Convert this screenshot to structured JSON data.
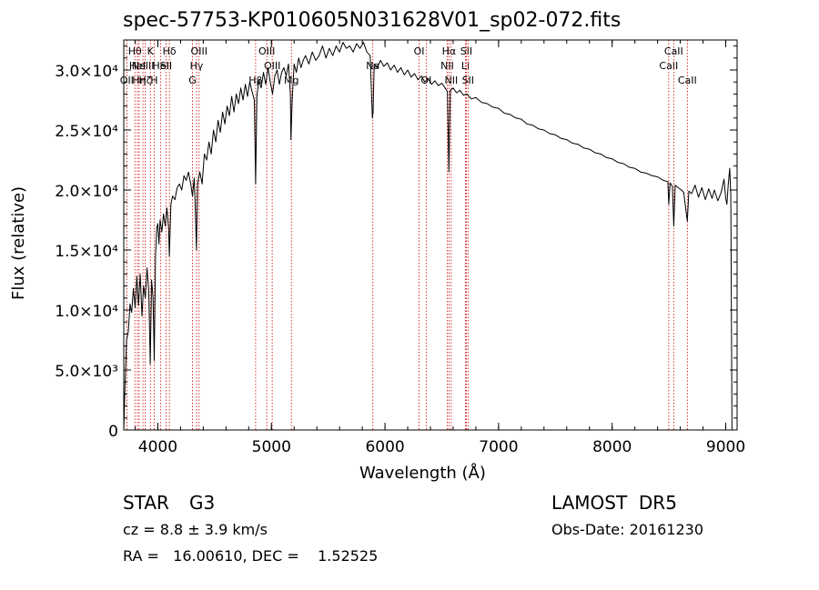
{
  "chart_data": {
    "type": "line",
    "title": "spec-57753-KP010605N031628V01_sp02-072.fits",
    "xlabel": "Wavelength (Å)",
    "ylabel": "Flux (relative)",
    "xlim": [
      3700,
      9100
    ],
    "ylim": [
      0,
      32500
    ],
    "x_ticks": [
      {
        "v": 4000,
        "label": "4000"
      },
      {
        "v": 5000,
        "label": "5000"
      },
      {
        "v": 6000,
        "label": "6000"
      },
      {
        "v": 7000,
        "label": "7000"
      },
      {
        "v": 8000,
        "label": "8000"
      },
      {
        "v": 9000,
        "label": "9000"
      }
    ],
    "y_ticks": [
      {
        "v": 0,
        "label": "0"
      },
      {
        "v": 5000,
        "label": "5.0×10³"
      },
      {
        "v": 10000,
        "label": "1.0×10⁴"
      },
      {
        "v": 15000,
        "label": "1.5×10⁴"
      },
      {
        "v": 20000,
        "label": "2.0×10⁴"
      },
      {
        "v": 25000,
        "label": "2.5×10⁴"
      },
      {
        "v": 30000,
        "label": "3.0×10⁴"
      }
    ],
    "grid": false,
    "line_color": "#000000",
    "marker_color": "#cc0000",
    "series": [
      {
        "points": [
          [
            3700,
            0
          ],
          [
            3712,
            4000
          ],
          [
            3725,
            7500
          ],
          [
            3740,
            8200
          ],
          [
            3755,
            10500
          ],
          [
            3770,
            9800
          ],
          [
            3785,
            11800
          ],
          [
            3800,
            10200
          ],
          [
            3815,
            12800
          ],
          [
            3830,
            10400
          ],
          [
            3845,
            13000
          ],
          [
            3860,
            9500
          ],
          [
            3875,
            12000
          ],
          [
            3890,
            11000
          ],
          [
            3905,
            13500
          ],
          [
            3920,
            11500
          ],
          [
            3933,
            5500
          ],
          [
            3945,
            12500
          ],
          [
            3958,
            11000
          ],
          [
            3968,
            5800
          ],
          [
            3980,
            14500
          ],
          [
            3990,
            16800
          ],
          [
            4000,
            17200
          ],
          [
            4010,
            15500
          ],
          [
            4020,
            17500
          ],
          [
            4035,
            16500
          ],
          [
            4050,
            18000
          ],
          [
            4065,
            17000
          ],
          [
            4080,
            18500
          ],
          [
            4095,
            16800
          ],
          [
            4101,
            14500
          ],
          [
            4115,
            18800
          ],
          [
            4130,
            19500
          ],
          [
            4150,
            19200
          ],
          [
            4170,
            20200
          ],
          [
            4190,
            20500
          ],
          [
            4210,
            20000
          ],
          [
            4230,
            21200
          ],
          [
            4250,
            20800
          ],
          [
            4270,
            21500
          ],
          [
            4290,
            20500
          ],
          [
            4305,
            19500
          ],
          [
            4320,
            21000
          ],
          [
            4330,
            18500
          ],
          [
            4340,
            15000
          ],
          [
            4350,
            20500
          ],
          [
            4370,
            21500
          ],
          [
            4390,
            20500
          ],
          [
            4410,
            23000
          ],
          [
            4430,
            22500
          ],
          [
            4450,
            24000
          ],
          [
            4470,
            23000
          ],
          [
            4490,
            25000
          ],
          [
            4510,
            24000
          ],
          [
            4530,
            25800
          ],
          [
            4550,
            24800
          ],
          [
            4570,
            26500
          ],
          [
            4590,
            25500
          ],
          [
            4610,
            27000
          ],
          [
            4630,
            26200
          ],
          [
            4650,
            27800
          ],
          [
            4670,
            26500
          ],
          [
            4690,
            28000
          ],
          [
            4710,
            27200
          ],
          [
            4730,
            28500
          ],
          [
            4750,
            27500
          ],
          [
            4770,
            28800
          ],
          [
            4790,
            27800
          ],
          [
            4810,
            29000
          ],
          [
            4830,
            28200
          ],
          [
            4850,
            27500
          ],
          [
            4861,
            20500
          ],
          [
            4872,
            27800
          ],
          [
            4890,
            29200
          ],
          [
            4910,
            28500
          ],
          [
            4930,
            29800
          ],
          [
            4950,
            28800
          ],
          [
            4970,
            30200
          ],
          [
            4990,
            29000
          ],
          [
            5010,
            28000
          ],
          [
            5030,
            29500
          ],
          [
            5050,
            30000
          ],
          [
            5070,
            28800
          ],
          [
            5090,
            29800
          ],
          [
            5110,
            30200
          ],
          [
            5130,
            29500
          ],
          [
            5150,
            30500
          ],
          [
            5167,
            28000
          ],
          [
            5172,
            24200
          ],
          [
            5183,
            27500
          ],
          [
            5200,
            30500
          ],
          [
            5220,
            29800
          ],
          [
            5240,
            31000
          ],
          [
            5260,
            30200
          ],
          [
            5280,
            30800
          ],
          [
            5300,
            31200
          ],
          [
            5330,
            30500
          ],
          [
            5360,
            31500
          ],
          [
            5390,
            30800
          ],
          [
            5420,
            31200
          ],
          [
            5450,
            32000
          ],
          [
            5480,
            31000
          ],
          [
            5510,
            31800
          ],
          [
            5540,
            31200
          ],
          [
            5570,
            32000
          ],
          [
            5600,
            31500
          ],
          [
            5630,
            32300
          ],
          [
            5660,
            31800
          ],
          [
            5690,
            32000
          ],
          [
            5720,
            31500
          ],
          [
            5750,
            32200
          ],
          [
            5780,
            31800
          ],
          [
            5810,
            32300
          ],
          [
            5840,
            31500
          ],
          [
            5870,
            31200
          ],
          [
            5889,
            26000
          ],
          [
            5895,
            26500
          ],
          [
            5905,
            30500
          ],
          [
            5930,
            30200
          ],
          [
            5960,
            30800
          ],
          [
            5990,
            30300
          ],
          [
            6020,
            30600
          ],
          [
            6050,
            30000
          ],
          [
            6080,
            30400
          ],
          [
            6110,
            29800
          ],
          [
            6140,
            30200
          ],
          [
            6170,
            29600
          ],
          [
            6200,
            30000
          ],
          [
            6230,
            29400
          ],
          [
            6260,
            29700
          ],
          [
            6290,
            29200
          ],
          [
            6320,
            29500
          ],
          [
            6350,
            29000
          ],
          [
            6380,
            29300
          ],
          [
            6410,
            28800
          ],
          [
            6440,
            29100
          ],
          [
            6470,
            28700
          ],
          [
            6500,
            28900
          ],
          [
            6530,
            28500
          ],
          [
            6550,
            28200
          ],
          [
            6563,
            21500
          ],
          [
            6575,
            28300
          ],
          [
            6600,
            28500
          ],
          [
            6630,
            28100
          ],
          [
            6660,
            28300
          ],
          [
            6690,
            27900
          ],
          [
            6720,
            28000
          ],
          [
            6760,
            27600
          ],
          [
            6800,
            27700
          ],
          [
            6850,
            27300
          ],
          [
            6900,
            27200
          ],
          [
            6950,
            26900
          ],
          [
            7000,
            26800
          ],
          [
            7050,
            26400
          ],
          [
            7100,
            26300
          ],
          [
            7150,
            26000
          ],
          [
            7200,
            25900
          ],
          [
            7250,
            25500
          ],
          [
            7300,
            25400
          ],
          [
            7350,
            25100
          ],
          [
            7400,
            25000
          ],
          [
            7450,
            24700
          ],
          [
            7500,
            24600
          ],
          [
            7550,
            24300
          ],
          [
            7600,
            24200
          ],
          [
            7650,
            23900
          ],
          [
            7700,
            23800
          ],
          [
            7750,
            23500
          ],
          [
            7800,
            23400
          ],
          [
            7850,
            23100
          ],
          [
            7900,
            23000
          ],
          [
            7950,
            22700
          ],
          [
            8000,
            22600
          ],
          [
            8050,
            22300
          ],
          [
            8100,
            22200
          ],
          [
            8150,
            21900
          ],
          [
            8200,
            21800
          ],
          [
            8250,
            21500
          ],
          [
            8300,
            21400
          ],
          [
            8350,
            21200
          ],
          [
            8400,
            21100
          ],
          [
            8450,
            20800
          ],
          [
            8490,
            20700
          ],
          [
            8498,
            18800
          ],
          [
            8510,
            20600
          ],
          [
            8530,
            20300
          ],
          [
            8542,
            17000
          ],
          [
            8555,
            20400
          ],
          [
            8580,
            20200
          ],
          [
            8610,
            20000
          ],
          [
            8630,
            19800
          ],
          [
            8662,
            17400
          ],
          [
            8675,
            19900
          ],
          [
            8700,
            19700
          ],
          [
            8730,
            20400
          ],
          [
            8760,
            19400
          ],
          [
            8790,
            20200
          ],
          [
            8820,
            19200
          ],
          [
            8850,
            20100
          ],
          [
            8880,
            19300
          ],
          [
            8900,
            20000
          ],
          [
            8930,
            19100
          ],
          [
            8960,
            19800
          ],
          [
            8985,
            20900
          ],
          [
            9000,
            19300
          ],
          [
            9010,
            18800
          ],
          [
            9022,
            20500
          ],
          [
            9035,
            21800
          ],
          [
            9045,
            19500
          ],
          [
            9055,
            0
          ]
        ]
      }
    ],
    "line_markers": [
      {
        "x": 3727,
        "label": "OII",
        "row": 2
      },
      {
        "x": 3798,
        "label": "Hθ",
        "row": 0
      },
      {
        "x": 3820,
        "label": "HeI",
        "row": 1
      },
      {
        "x": 3835,
        "label": "Hη",
        "row": 2
      },
      {
        "x": 3869,
        "label": "NeIII",
        "row": 1
      },
      {
        "x": 3889,
        "label": "Hζ",
        "row": 2
      },
      {
        "x": 3934,
        "label": "K",
        "row": 0
      },
      {
        "x": 3968,
        "label": "H",
        "row": 2
      },
      {
        "x": 4026,
        "label": "HeI",
        "row": 1
      },
      {
        "x": 4072,
        "label": "SII",
        "row": 1
      },
      {
        "x": 4102,
        "label": "Hδ",
        "row": 0
      },
      {
        "x": 4305,
        "label": "G",
        "row": 2
      },
      {
        "x": 4341,
        "label": "Hγ",
        "row": 1
      },
      {
        "x": 4363,
        "label": "OIII",
        "row": 0
      },
      {
        "x": 4861,
        "label": "Hβ",
        "row": 2
      },
      {
        "x": 4959,
        "label": "OIII",
        "row": 0
      },
      {
        "x": 5007,
        "label": "OIII",
        "row": 1
      },
      {
        "x": 5176,
        "label": "Mg",
        "row": 2
      },
      {
        "x": 5893,
        "label": "Na",
        "row": 1
      },
      {
        "x": 6300,
        "label": "OI",
        "row": 0
      },
      {
        "x": 6363,
        "label": "OI",
        "row": 2
      },
      {
        "x": 6548,
        "label": "NII",
        "row": 1
      },
      {
        "x": 6563,
        "label": "Hα",
        "row": 0
      },
      {
        "x": 6583,
        "label": "NII",
        "row": 2
      },
      {
        "x": 6708,
        "label": "Li",
        "row": 1
      },
      {
        "x": 6716,
        "label": "SII",
        "row": 0
      },
      {
        "x": 6731,
        "label": "SII",
        "row": 2
      },
      {
        "x": 8498,
        "label": "CaII",
        "row": 1
      },
      {
        "x": 8542,
        "label": "CaII",
        "row": 0
      },
      {
        "x": 8662,
        "label": "CaII",
        "row": 2
      }
    ]
  },
  "info": {
    "class_label": "STAR",
    "subclass_label": "G3",
    "redshift_text": "cz = 8.8 ± 3.9 km/s",
    "coords_text": "RA =   16.00610, DEC =    1.52525",
    "survey_text": "LAMOST  DR5",
    "obs_date_text": "Obs-Date: 20161230"
  }
}
